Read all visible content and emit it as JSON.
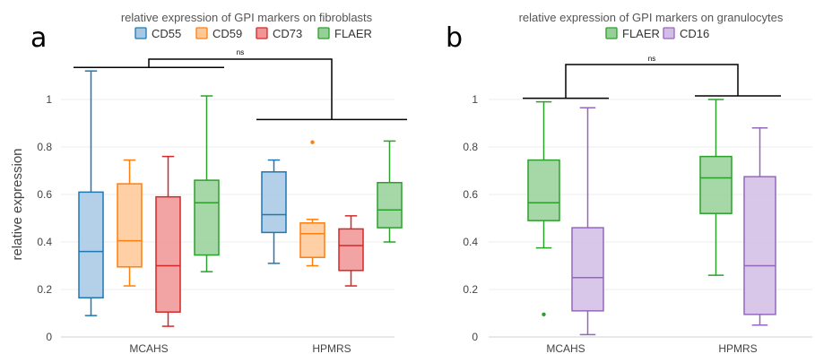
{
  "chart_data": [
    {
      "type": "box",
      "panel_label": "a",
      "title": "relative expression of GPI markers on fibroblasts",
      "ylabel": "relative expression",
      "xlabel": "",
      "ylim": [
        0,
        1.2
      ],
      "yticks": [
        "0",
        "0.2",
        "0.4",
        "0.6",
        "0.8",
        "1"
      ],
      "grid": true,
      "legend_position": "top-center",
      "categories": [
        "MCAHS",
        "HPMRS"
      ],
      "series": [
        {
          "name": "CD55",
          "color": "#1f77b4",
          "fill": "#a6c8e4",
          "boxes": [
            {
              "min": 0.09,
              "q1": 0.165,
              "median": 0.36,
              "q3": 0.61,
              "max": 1.12,
              "outliers": []
            },
            {
              "min": 0.31,
              "q1": 0.44,
              "median": 0.515,
              "q3": 0.695,
              "max": 0.745,
              "outliers": []
            }
          ]
        },
        {
          "name": "CD59",
          "color": "#ff7f0e",
          "fill": "#ffc896",
          "boxes": [
            {
              "min": 0.215,
              "q1": 0.295,
              "median": 0.405,
              "q3": 0.645,
              "max": 0.745,
              "outliers": []
            },
            {
              "min": 0.3,
              "q1": 0.335,
              "median": 0.435,
              "q3": 0.48,
              "max": 0.495,
              "outliers": [
                0.82
              ]
            }
          ]
        },
        {
          "name": "CD73",
          "color": "#d62728",
          "fill": "#f09494",
          "boxes": [
            {
              "min": 0.045,
              "q1": 0.105,
              "median": 0.3,
              "q3": 0.59,
              "max": 0.76,
              "outliers": []
            },
            {
              "min": 0.215,
              "q1": 0.28,
              "median": 0.385,
              "q3": 0.455,
              "max": 0.51,
              "outliers": []
            }
          ]
        },
        {
          "name": "FLAER",
          "color": "#2ca02c",
          "fill": "#96d096",
          "boxes": [
            {
              "min": 0.275,
              "q1": 0.345,
              "median": 0.565,
              "q3": 0.66,
              "max": 1.015,
              "outliers": []
            },
            {
              "min": 0.4,
              "q1": 0.46,
              "median": 0.535,
              "q3": 0.65,
              "max": 0.825,
              "outliers": []
            }
          ]
        }
      ],
      "significance": {
        "label": "ns"
      }
    },
    {
      "type": "box",
      "panel_label": "b",
      "title": "relative expression of GPI markers on granulocytes",
      "ylabel": "",
      "xlabel": "",
      "ylim": [
        0,
        1.2
      ],
      "yticks": [
        "0",
        "0.2",
        "0.4",
        "0.6",
        "0.8",
        "1"
      ],
      "grid": true,
      "legend_position": "top-center",
      "categories": [
        "MCAHS",
        "HPMRS"
      ],
      "series": [
        {
          "name": "FLAER",
          "color": "#2ca02c",
          "fill": "#96d096",
          "boxes": [
            {
              "min": 0.375,
              "q1": 0.49,
              "median": 0.565,
              "q3": 0.745,
              "max": 0.99,
              "outliers": [
                0.095
              ]
            },
            {
              "min": 0.26,
              "q1": 0.52,
              "median": 0.67,
              "q3": 0.76,
              "max": 1.0,
              "outliers": []
            }
          ]
        },
        {
          "name": "CD16",
          "color": "#9467bd",
          "fill": "#d2bde6",
          "boxes": [
            {
              "min": 0.01,
              "q1": 0.11,
              "median": 0.25,
              "q3": 0.46,
              "max": 0.965,
              "outliers": []
            },
            {
              "min": 0.05,
              "q1": 0.095,
              "median": 0.3,
              "q3": 0.675,
              "max": 0.88,
              "outliers": []
            }
          ]
        }
      ],
      "significance": {
        "label": "ns"
      }
    }
  ]
}
